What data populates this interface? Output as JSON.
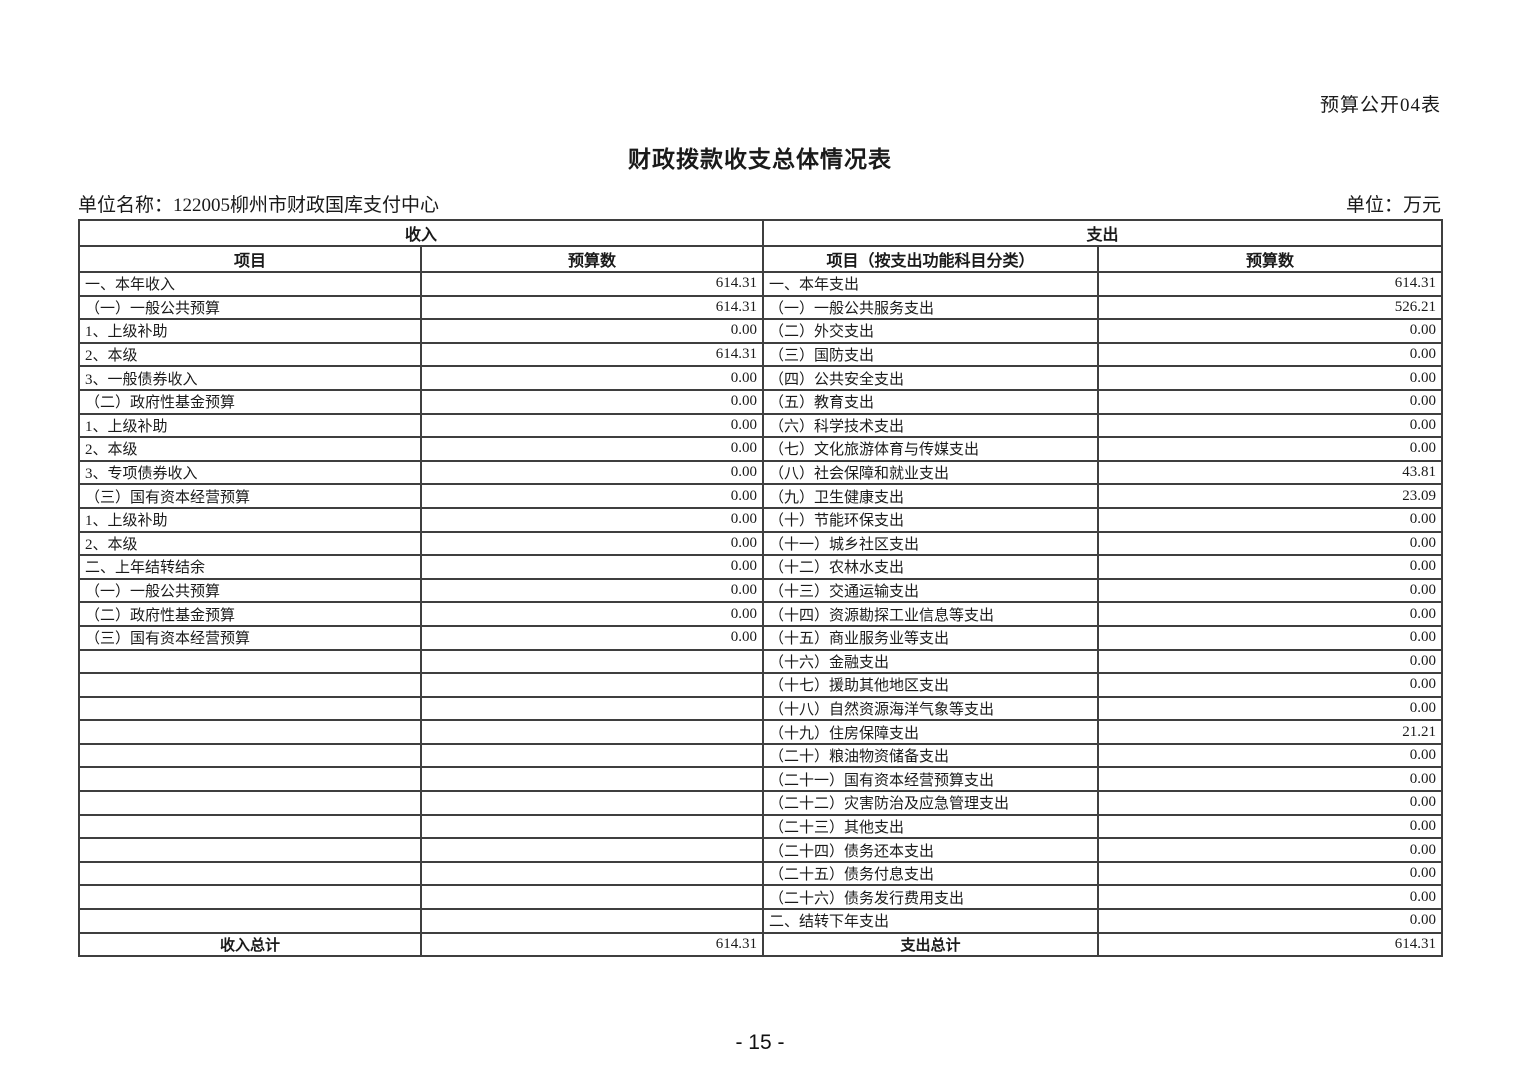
{
  "page": {
    "form_label": "预算公开04表",
    "title": "财政拨款收支总体情况表",
    "unit_name": "单位名称：122005柳州市财政国库支付中心",
    "unit": "单位：万元",
    "page_number": "- 15 -"
  },
  "table": {
    "revenue": {
      "section_header": "收入",
      "col_item": "项目",
      "col_budget": "预算数",
      "rows": [
        {
          "label": "一、本年收入",
          "value": "614.31",
          "indent": 1
        },
        {
          "label": "（一）一般公共预算",
          "value": "614.31",
          "indent": 2
        },
        {
          "label": "1、上级补助",
          "value": "0.00",
          "indent": 3
        },
        {
          "label": "2、本级",
          "value": "614.31",
          "indent": 3
        },
        {
          "label": "3、一般债券收入",
          "value": "0.00",
          "indent": 3
        },
        {
          "label": "（二）政府性基金预算",
          "value": "0.00",
          "indent": 2
        },
        {
          "label": "1、上级补助",
          "value": "0.00",
          "indent": 3
        },
        {
          "label": "2、本级",
          "value": "0.00",
          "indent": 3
        },
        {
          "label": "3、专项债券收入",
          "value": "0.00",
          "indent": 3
        },
        {
          "label": "（三）国有资本经营预算",
          "value": "0.00",
          "indent": 2
        },
        {
          "label": "1、上级补助",
          "value": "0.00",
          "indent": 3
        },
        {
          "label": "2、本级",
          "value": "0.00",
          "indent": 3
        },
        {
          "label": "二、上年结转结余",
          "value": "0.00",
          "indent": 1
        },
        {
          "label": "（一）一般公共预算",
          "value": "0.00",
          "indent": 2
        },
        {
          "label": "（二）政府性基金预算",
          "value": "0.00",
          "indent": 2
        },
        {
          "label": "（三）国有资本经营预算",
          "value": "0.00",
          "indent": 2
        }
      ],
      "total_label": "收入总计",
      "total_value": "614.31"
    },
    "expenditure": {
      "section_header": "支出",
      "col_item": "项目（按支出功能科目分类）",
      "col_budget": "预算数",
      "rows": [
        {
          "label": "一、本年支出",
          "value": "614.31",
          "indent": 1
        },
        {
          "label": "（一）一般公共服务支出",
          "value": "526.21",
          "indent": 2
        },
        {
          "label": "（二）外交支出",
          "value": "0.00",
          "indent": 2
        },
        {
          "label": "（三）国防支出",
          "value": "0.00",
          "indent": 2
        },
        {
          "label": "（四）公共安全支出",
          "value": "0.00",
          "indent": 2
        },
        {
          "label": "（五）教育支出",
          "value": "0.00",
          "indent": 2
        },
        {
          "label": "（六）科学技术支出",
          "value": "0.00",
          "indent": 2
        },
        {
          "label": "（七）文化旅游体育与传媒支出",
          "value": "0.00",
          "indent": 2
        },
        {
          "label": "（八）社会保障和就业支出",
          "value": "43.81",
          "indent": 2
        },
        {
          "label": "（九）卫生健康支出",
          "value": "23.09",
          "indent": 2
        },
        {
          "label": "（十）节能环保支出",
          "value": "0.00",
          "indent": 2
        },
        {
          "label": "（十一）城乡社区支出",
          "value": "0.00",
          "indent": 2
        },
        {
          "label": "（十二）农林水支出",
          "value": "0.00",
          "indent": 2
        },
        {
          "label": "（十三）交通运输支出",
          "value": "0.00",
          "indent": 2
        },
        {
          "label": "（十四）资源勘探工业信息等支出",
          "value": "0.00",
          "indent": 2
        },
        {
          "label": "（十五）商业服务业等支出",
          "value": "0.00",
          "indent": 2
        },
        {
          "label": "（十六）金融支出",
          "value": "0.00",
          "indent": 2
        },
        {
          "label": "（十七）援助其他地区支出",
          "value": "0.00",
          "indent": 2
        },
        {
          "label": "（十八）自然资源海洋气象等支出",
          "value": "0.00",
          "indent": 2
        },
        {
          "label": "（十九）住房保障支出",
          "value": "21.21",
          "indent": 2
        },
        {
          "label": "（二十）粮油物资储备支出",
          "value": "0.00",
          "indent": 2
        },
        {
          "label": "（二十一）国有资本经营预算支出",
          "value": "0.00",
          "indent": 2
        },
        {
          "label": "（二十二）灾害防治及应急管理支出",
          "value": "0.00",
          "indent": 2
        },
        {
          "label": "（二十三）其他支出",
          "value": "0.00",
          "indent": 2
        },
        {
          "label": "（二十四）债务还本支出",
          "value": "0.00",
          "indent": 2
        },
        {
          "label": "（二十五）债务付息支出",
          "value": "0.00",
          "indent": 2
        },
        {
          "label": "（二十六）债务发行费用支出",
          "value": "0.00",
          "indent": 2
        },
        {
          "label": "二、结转下年支出",
          "value": "0.00",
          "indent": 1
        }
      ],
      "total_label": "支出总计",
      "total_value": "614.31"
    }
  }
}
